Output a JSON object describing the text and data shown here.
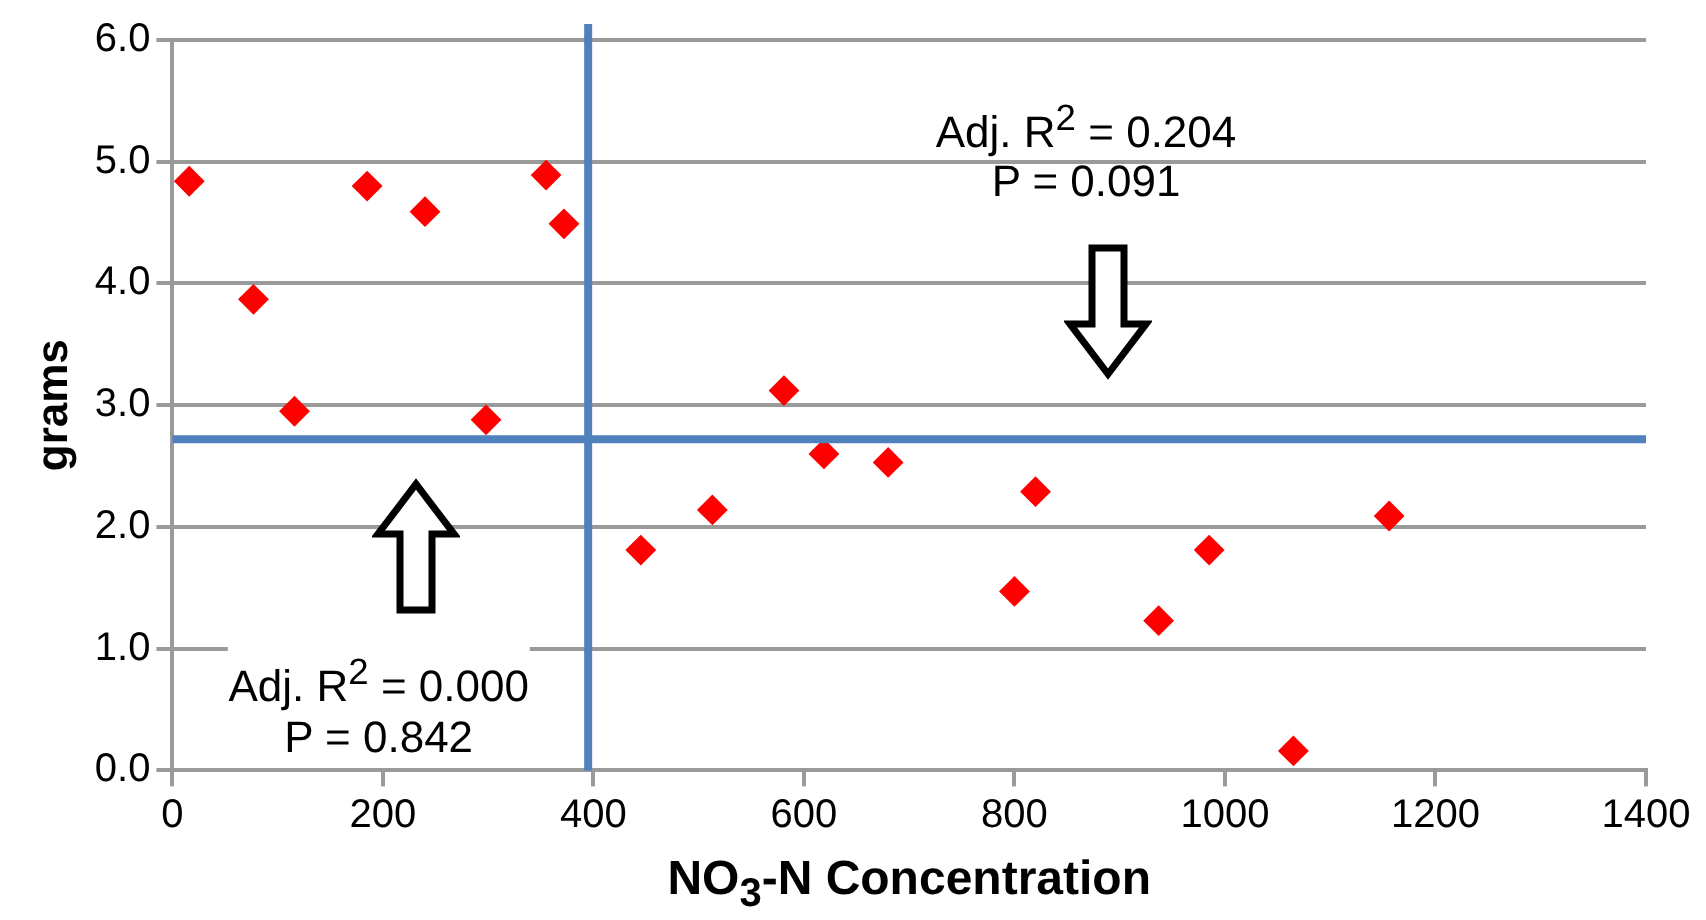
{
  "chart_data": {
    "type": "scatter",
    "xlabel": "NO$_{3}$-N Concentration",
    "ylabel": "grams",
    "x": [
      16,
      77,
      116,
      185,
      240,
      298,
      355,
      372,
      445,
      513,
      581,
      619,
      680,
      800,
      820,
      937,
      985,
      1065,
      1156
    ],
    "series": [
      {
        "color": "#ff0000",
        "values": [
          4.84,
          3.87,
          2.95,
          4.8,
          4.59,
          2.88,
          4.89,
          4.49,
          1.81,
          2.14,
          3.12,
          2.6,
          2.53,
          1.47,
          2.29,
          1.23,
          1.81,
          0.16,
          2.09
        ]
      }
    ],
    "xlim": [
      0,
      1400
    ],
    "xticks": [
      0,
      200,
      400,
      600,
      800,
      1000,
      1200,
      1400
    ],
    "ylim": [
      0,
      6
    ],
    "yticks": [
      {
        "value": 0,
        "label": "0.0"
      },
      {
        "value": 1,
        "label": "1.0"
      },
      {
        "value": 2,
        "label": "2.0"
      },
      {
        "value": 3,
        "label": "3.0"
      },
      {
        "value": 4,
        "label": "4.0"
      },
      {
        "value": 5,
        "label": "5.0"
      },
      {
        "value": 6,
        "label": "6.0"
      }
    ],
    "ref_lines": [
      {
        "axis": "x",
        "value": 395,
        "color": "#4f81bd"
      },
      {
        "axis": "y",
        "value": 2.72,
        "color": "#4f81bd"
      }
    ],
    "annotations": [
      "Adj. R$^{2}$ = 0.204",
      "P = 0.091",
      "Adj. R$^{2}$ = 0.000",
      "P = 0.842"
    ],
    "grid": "y",
    "marker": "diamond",
    "legend": false
  }
}
